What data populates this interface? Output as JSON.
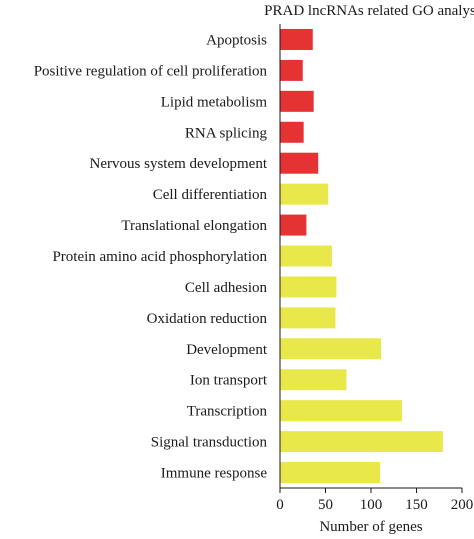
{
  "chart_data": {
    "type": "bar",
    "orientation": "horizontal",
    "title": "PRAD lncRNAs related GO analysis",
    "xlabel": "Number of genes",
    "ylabel": "",
    "xlim": [
      0,
      200
    ],
    "xticks": [
      "0",
      "50",
      "100",
      "150",
      "200"
    ],
    "grid": false,
    "colors": {
      "red": "#e53232",
      "yellow": "#e8e84a"
    },
    "categories": [
      "Apoptosis",
      "Positive regulation of cell proliferation",
      "Lipid metabolism",
      "RNA splicing",
      "Nervous system development",
      "Cell differentiation",
      "Translational elongation",
      "Protein amino acid phosphorylation",
      "Cell adhesion",
      "Oxidation reduction",
      "Development",
      "Ion transport",
      "Transcription",
      "Signal transduction",
      "Immune response"
    ],
    "values": [
      36,
      25,
      37,
      26,
      42,
      53,
      29,
      57,
      62,
      61,
      111,
      73,
      134,
      179,
      110
    ],
    "bar_colors": [
      "red",
      "red",
      "red",
      "red",
      "red",
      "yellow",
      "red",
      "yellow",
      "yellow",
      "yellow",
      "yellow",
      "yellow",
      "yellow",
      "yellow",
      "yellow"
    ]
  }
}
